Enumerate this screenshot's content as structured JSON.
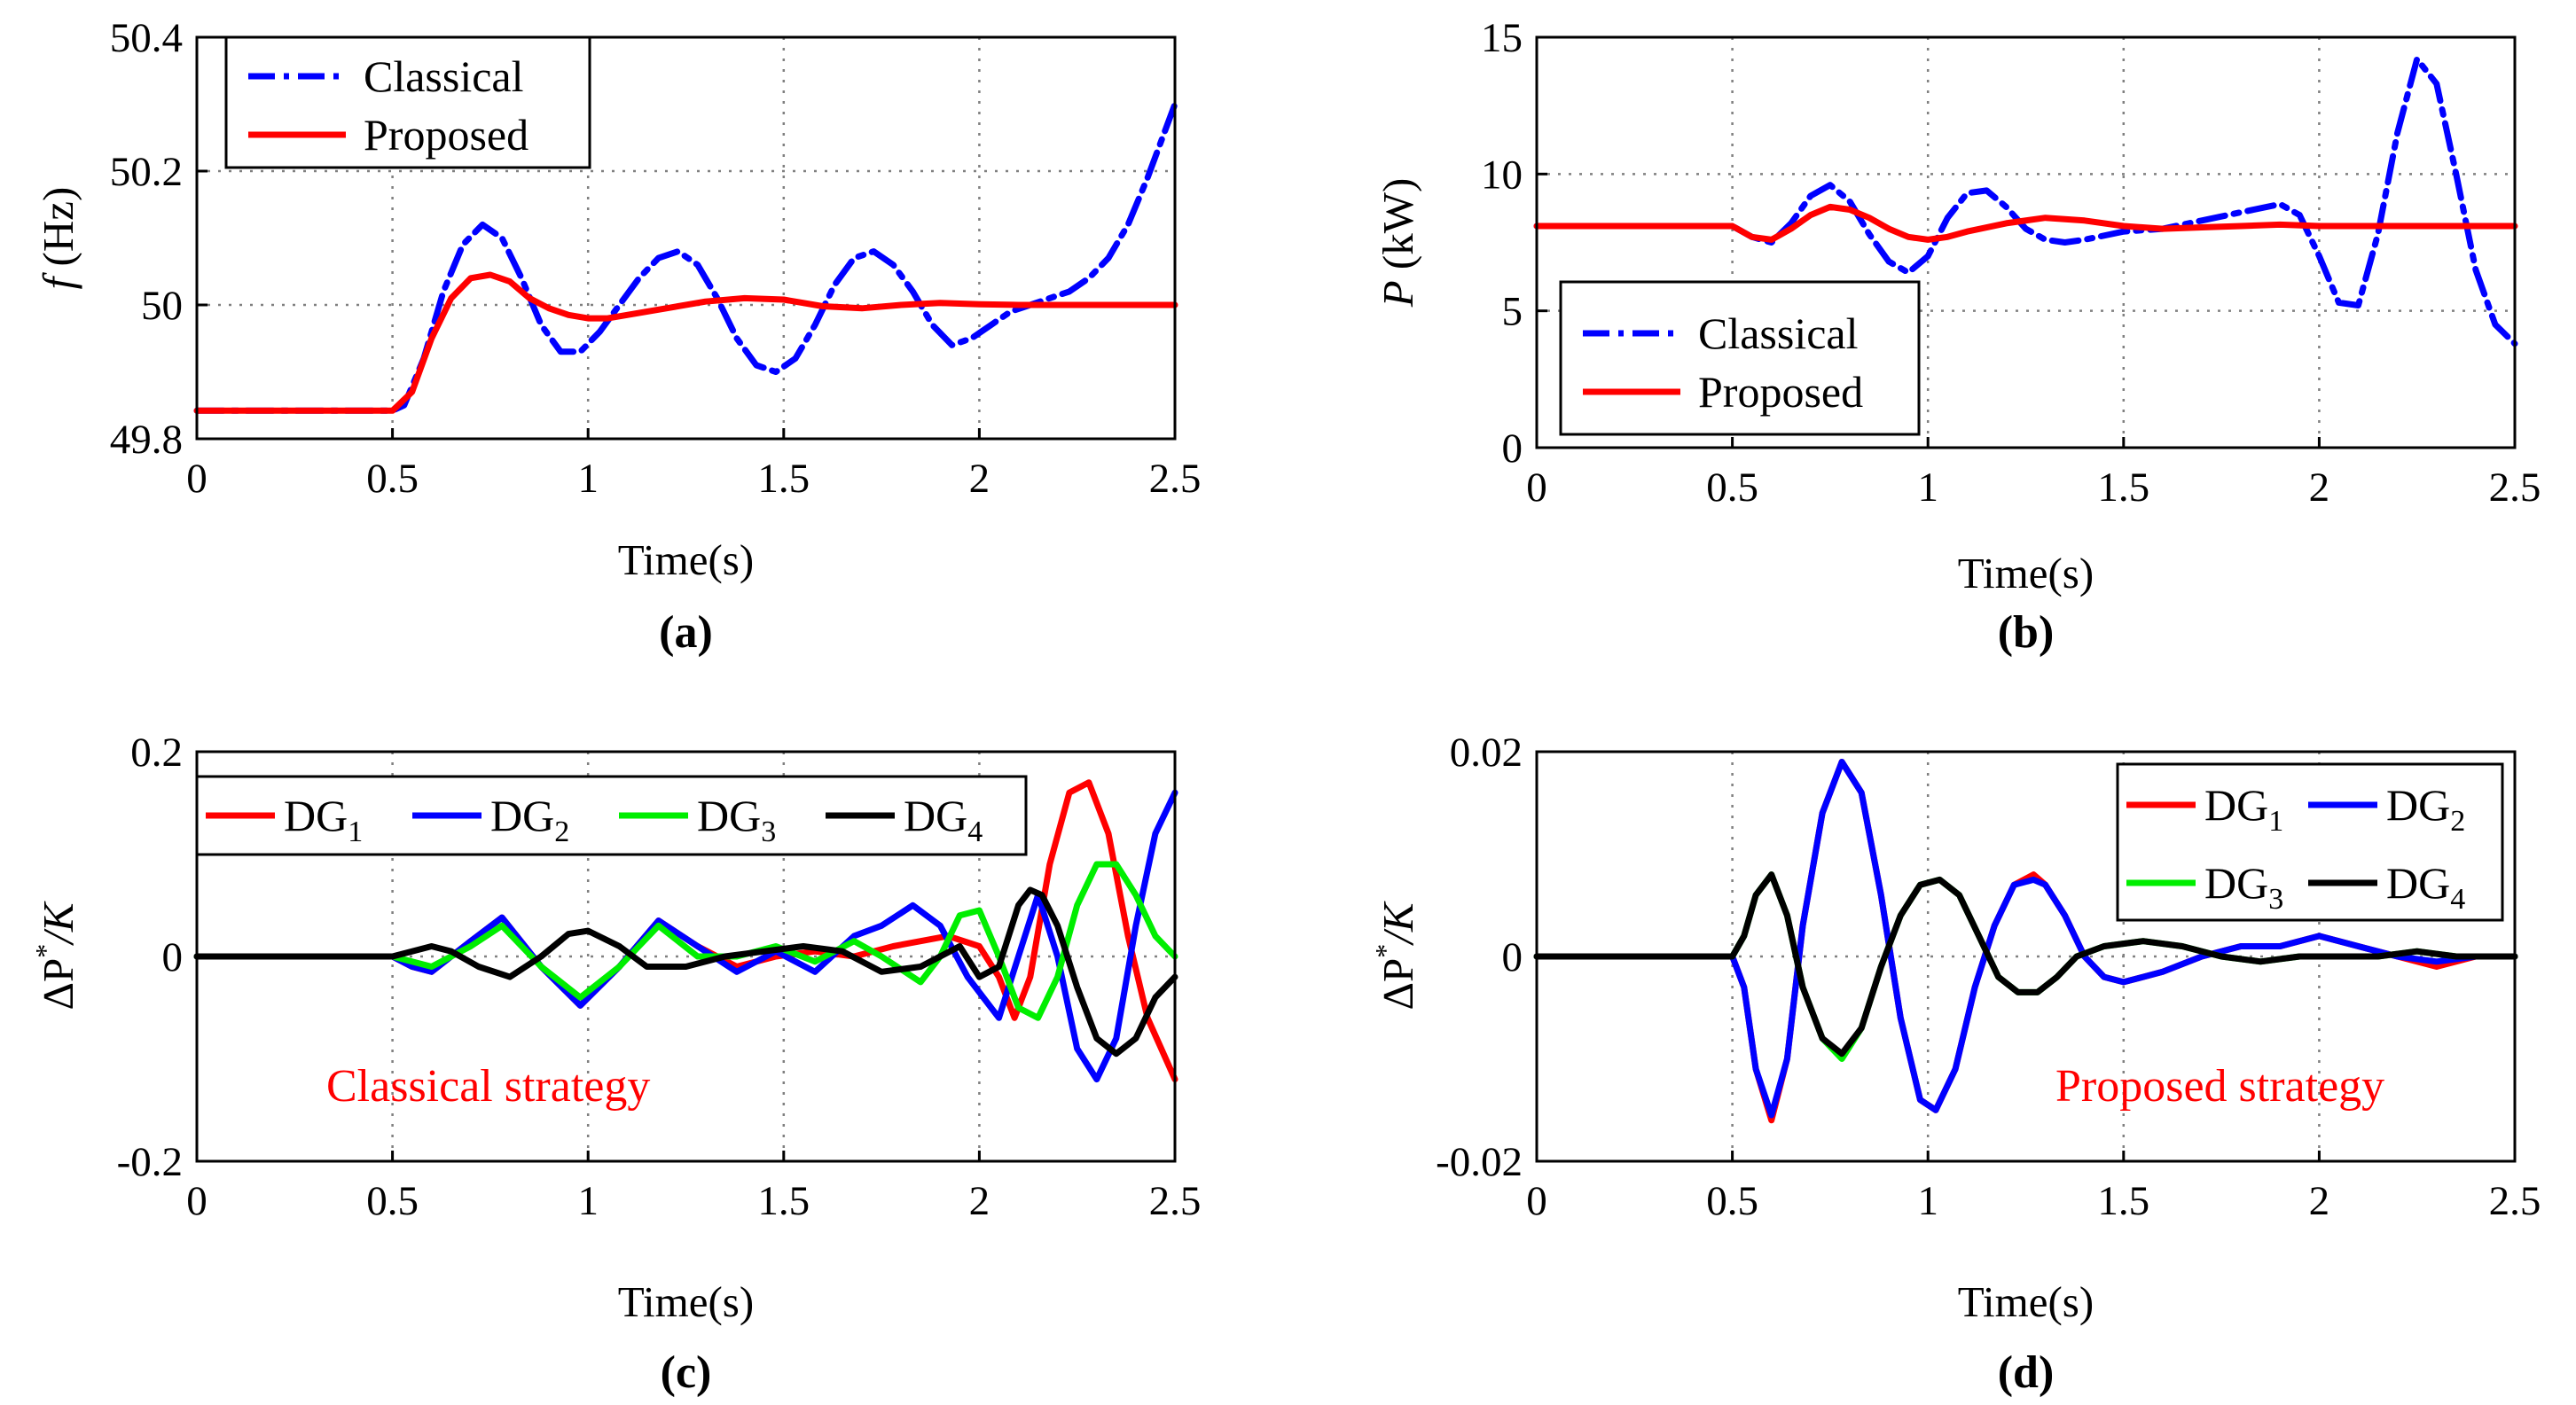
{
  "colors": {
    "red": "#ff0000",
    "blue": "#0000ff",
    "green": "#00ee00",
    "black": "#000000"
  },
  "chart_data": [
    {
      "id": "a",
      "type": "line",
      "caption": "(a)",
      "xlabel": "Time(s)",
      "ylabel_italic": "f",
      "ylabel_rest": " (Hz)",
      "xlim": [
        0,
        2.5
      ],
      "ylim": [
        49.8,
        50.4
      ],
      "xticks": [
        "0",
        "0.5",
        "1",
        "1.5",
        "2",
        "2.5"
      ],
      "xtick_values": [
        0,
        0.5,
        1,
        1.5,
        2,
        2.5
      ],
      "yticks": [
        "49.8",
        "50",
        "50.2",
        "50.4"
      ],
      "ytick_values": [
        49.8,
        50,
        50.2,
        50.4
      ],
      "legend": {
        "position": "top-left",
        "labels": [
          "Classical",
          "Proposed"
        ]
      },
      "series": [
        {
          "name": "Classical",
          "color": "blue",
          "dash": "dashdot",
          "x": [
            0,
            0.5,
            0.53,
            0.58,
            0.63,
            0.68,
            0.73,
            0.78,
            0.83,
            0.88,
            0.93,
            0.98,
            1.03,
            1.08,
            1.13,
            1.18,
            1.23,
            1.28,
            1.33,
            1.38,
            1.43,
            1.48,
            1.53,
            1.58,
            1.63,
            1.68,
            1.73,
            1.78,
            1.83,
            1.88,
            1.93,
            1.98,
            2.03,
            2.08,
            2.13,
            2.18,
            2.23,
            2.28,
            2.33,
            2.38,
            2.43,
            2.5
          ],
          "y": [
            49.842,
            49.842,
            49.85,
            49.92,
            50.02,
            50.09,
            50.12,
            50.1,
            50.04,
            49.97,
            49.93,
            49.93,
            49.96,
            50.0,
            50.04,
            50.07,
            50.08,
            50.06,
            50.01,
            49.95,
            49.91,
            49.9,
            49.92,
            49.97,
            50.03,
            50.07,
            50.08,
            50.06,
            50.02,
            49.97,
            49.94,
            49.95,
            49.97,
            49.99,
            50.0,
            50.01,
            50.02,
            50.04,
            50.07,
            50.12,
            50.19,
            50.3
          ]
        },
        {
          "name": "Proposed",
          "color": "red",
          "dash": "solid",
          "x": [
            0,
            0.5,
            0.55,
            0.6,
            0.65,
            0.7,
            0.75,
            0.8,
            0.85,
            0.9,
            0.95,
            1.0,
            1.05,
            1.1,
            1.2,
            1.3,
            1.4,
            1.5,
            1.6,
            1.7,
            1.8,
            1.9,
            2.0,
            2.1,
            2.2,
            2.3,
            2.4,
            2.5
          ],
          "y": [
            49.842,
            49.842,
            49.87,
            49.95,
            50.01,
            50.04,
            50.045,
            50.035,
            50.01,
            49.995,
            49.985,
            49.98,
            49.98,
            49.985,
            49.995,
            50.005,
            50.01,
            50.008,
            49.998,
            49.995,
            50.0,
            50.003,
            50.001,
            50.0,
            50.0,
            50.0,
            50.0,
            50.0
          ]
        }
      ]
    },
    {
      "id": "b",
      "type": "line",
      "caption": "(b)",
      "xlabel": "Time(s)",
      "ylabel_italic": "P",
      "ylabel_rest": " (kW)",
      "xlim": [
        0,
        2.5
      ],
      "ylim": [
        0,
        15
      ],
      "xticks": [
        "0",
        "0.5",
        "1",
        "1.5",
        "2",
        "2.5"
      ],
      "xtick_values": [
        0,
        0.5,
        1,
        1.5,
        2,
        2.5
      ],
      "yticks": [
        "0",
        "5",
        "10",
        "15"
      ],
      "ytick_values": [
        0,
        5,
        10,
        15
      ],
      "legend": {
        "position": "bottom-left",
        "labels": [
          "Classical",
          "Proposed"
        ]
      },
      "series": [
        {
          "name": "Classical",
          "color": "blue",
          "dash": "dashdot",
          "x": [
            0,
            0.5,
            0.55,
            0.6,
            0.65,
            0.7,
            0.75,
            0.8,
            0.85,
            0.9,
            0.95,
            1.0,
            1.05,
            1.1,
            1.15,
            1.2,
            1.25,
            1.3,
            1.35,
            1.4,
            1.5,
            1.6,
            1.7,
            1.8,
            1.9,
            1.95,
            2.0,
            2.05,
            2.1,
            2.15,
            2.2,
            2.25,
            2.3,
            2.35,
            2.4,
            2.45,
            2.5
          ],
          "y": [
            8.1,
            8.1,
            7.7,
            7.5,
            8.2,
            9.2,
            9.6,
            9.0,
            7.8,
            6.8,
            6.4,
            7.0,
            8.4,
            9.3,
            9.4,
            8.8,
            8.0,
            7.6,
            7.5,
            7.6,
            7.9,
            8.0,
            8.3,
            8.6,
            8.9,
            8.5,
            7.0,
            5.3,
            5.2,
            7.8,
            11.5,
            14.2,
            13.3,
            10.0,
            6.5,
            4.5,
            3.8
          ]
        },
        {
          "name": "Proposed",
          "color": "red",
          "dash": "solid",
          "x": [
            0,
            0.5,
            0.55,
            0.6,
            0.65,
            0.7,
            0.75,
            0.8,
            0.85,
            0.9,
            0.95,
            1.0,
            1.05,
            1.1,
            1.2,
            1.3,
            1.4,
            1.5,
            1.6,
            1.7,
            1.8,
            1.9,
            2.0,
            2.2,
            2.5
          ],
          "y": [
            8.1,
            8.1,
            7.7,
            7.6,
            8.0,
            8.5,
            8.8,
            8.7,
            8.4,
            8.0,
            7.7,
            7.6,
            7.7,
            7.9,
            8.2,
            8.4,
            8.3,
            8.1,
            8.0,
            8.05,
            8.1,
            8.15,
            8.1,
            8.1,
            8.1
          ]
        }
      ]
    },
    {
      "id": "c",
      "type": "line",
      "caption": "(c)",
      "xlabel": "Time(s)",
      "ylabel_text": "ΔP",
      "ylabel_sup": "*",
      "ylabel_tail": "/K",
      "xlim": [
        0,
        2.5
      ],
      "ylim": [
        -0.2,
        0.2
      ],
      "xticks": [
        "0",
        "0.5",
        "1",
        "1.5",
        "2",
        "2.5"
      ],
      "xtick_values": [
        0,
        0.5,
        1,
        1.5,
        2,
        2.5
      ],
      "yticks": [
        "-0.2",
        "0",
        "0.2"
      ],
      "ytick_values": [
        -0.2,
        0,
        0.2
      ],
      "annotation": "Classical strategy",
      "legend": {
        "position": "top",
        "base": "DG",
        "subs": [
          "1",
          "2",
          "3",
          "4"
        ]
      },
      "series": [
        {
          "name": "DG1",
          "color": "red",
          "x": [
            0,
            0.5,
            0.55,
            0.6,
            0.7,
            0.78,
            0.88,
            0.98,
            1.08,
            1.18,
            1.28,
            1.38,
            1.48,
            1.58,
            1.68,
            1.78,
            1.85,
            1.92,
            2.0,
            2.05,
            2.09,
            2.13,
            2.18,
            2.23,
            2.28,
            2.33,
            2.38,
            2.43,
            2.5
          ],
          "y": [
            0,
            0,
            -0.01,
            -0.015,
            0.015,
            0.038,
            -0.01,
            -0.048,
            -0.01,
            0.035,
            0.01,
            -0.01,
            0.0,
            0.005,
            0.0,
            0.01,
            0.015,
            0.02,
            0.01,
            -0.02,
            -0.06,
            -0.02,
            0.09,
            0.16,
            0.17,
            0.12,
            0.02,
            -0.06,
            -0.12
          ]
        },
        {
          "name": "DG2",
          "color": "blue",
          "x": [
            0,
            0.5,
            0.55,
            0.6,
            0.7,
            0.78,
            0.88,
            0.98,
            1.08,
            1.18,
            1.28,
            1.38,
            1.48,
            1.58,
            1.68,
            1.75,
            1.83,
            1.9,
            1.97,
            2.05,
            2.1,
            2.15,
            2.2,
            2.25,
            2.3,
            2.35,
            2.4,
            2.45,
            2.5
          ],
          "y": [
            0,
            0,
            -0.01,
            -0.015,
            0.015,
            0.038,
            -0.01,
            -0.048,
            -0.01,
            0.035,
            0.01,
            -0.015,
            0.005,
            -0.015,
            0.02,
            0.03,
            0.05,
            0.03,
            -0.02,
            -0.06,
            0.0,
            0.06,
            0.0,
            -0.09,
            -0.12,
            -0.08,
            0.03,
            0.12,
            0.16
          ]
        },
        {
          "name": "DG3",
          "color": "green",
          "x": [
            0,
            0.5,
            0.55,
            0.6,
            0.7,
            0.78,
            0.88,
            0.98,
            1.08,
            1.18,
            1.28,
            1.38,
            1.48,
            1.58,
            1.68,
            1.75,
            1.85,
            1.9,
            1.95,
            2.0,
            2.05,
            2.1,
            2.15,
            2.2,
            2.25,
            2.3,
            2.35,
            2.4,
            2.45,
            2.5
          ],
          "y": [
            0,
            0,
            -0.005,
            -0.01,
            0.01,
            0.03,
            -0.01,
            -0.04,
            -0.01,
            0.03,
            0.0,
            0.0,
            0.01,
            -0.005,
            0.015,
            0.0,
            -0.025,
            0.0,
            0.04,
            0.045,
            0.0,
            -0.05,
            -0.06,
            -0.02,
            0.05,
            0.09,
            0.09,
            0.06,
            0.02,
            0.0
          ]
        },
        {
          "name": "DG4",
          "color": "black",
          "x": [
            0,
            0.5,
            0.55,
            0.6,
            0.65,
            0.72,
            0.8,
            0.88,
            0.95,
            1.0,
            1.08,
            1.15,
            1.25,
            1.35,
            1.45,
            1.55,
            1.65,
            1.75,
            1.85,
            1.95,
            2.0,
            2.05,
            2.1,
            2.13,
            2.16,
            2.2,
            2.25,
            2.3,
            2.35,
            2.4,
            2.45,
            2.5
          ],
          "y": [
            0,
            0,
            0.005,
            0.01,
            0.005,
            -0.01,
            -0.02,
            0.0,
            0.022,
            0.025,
            0.01,
            -0.01,
            -0.01,
            0.0,
            0.005,
            0.01,
            0.005,
            -0.015,
            -0.01,
            0.01,
            -0.02,
            -0.01,
            0.05,
            0.065,
            0.06,
            0.03,
            -0.03,
            -0.08,
            -0.095,
            -0.08,
            -0.04,
            -0.02
          ]
        }
      ]
    },
    {
      "id": "d",
      "type": "line",
      "caption": "(d)",
      "xlabel": "Time(s)",
      "ylabel_text": "ΔP",
      "ylabel_sup": "*",
      "ylabel_tail": "/K",
      "xlim": [
        0,
        2.5
      ],
      "ylim": [
        -0.02,
        0.02
      ],
      "xticks": [
        "0",
        "0.5",
        "1",
        "1.5",
        "2",
        "2.5"
      ],
      "xtick_values": [
        0,
        0.5,
        1,
        1.5,
        2,
        2.5
      ],
      "yticks": [
        "-0.02",
        "0",
        "0.02"
      ],
      "ytick_values": [
        -0.02,
        0,
        0.02
      ],
      "annotation": "Proposed strategy",
      "legend": {
        "position": "top-right",
        "base": "DG",
        "subs": [
          "1",
          "2",
          "3",
          "4"
        ]
      },
      "series": [
        {
          "name": "DG1",
          "color": "red",
          "x": [
            0,
            0.5,
            0.53,
            0.56,
            0.6,
            0.64,
            0.68,
            0.73,
            0.78,
            0.83,
            0.88,
            0.93,
            0.98,
            1.02,
            1.07,
            1.12,
            1.17,
            1.22,
            1.27,
            1.3,
            1.35,
            1.4,
            1.45,
            1.5,
            1.55,
            1.6,
            1.7,
            1.8,
            1.9,
            2.0,
            2.1,
            2.2,
            2.3,
            2.4,
            2.5
          ],
          "y": [
            0,
            0,
            -0.003,
            -0.011,
            -0.016,
            -0.01,
            0.003,
            0.014,
            0.019,
            0.016,
            0.006,
            -0.006,
            -0.014,
            -0.015,
            -0.011,
            -0.003,
            0.003,
            0.007,
            0.008,
            0.007,
            0.004,
            0.0,
            -0.002,
            -0.0025,
            -0.002,
            -0.0015,
            0.0,
            0.001,
            0.001,
            0.002,
            0.001,
            0.0,
            -0.001,
            0.0,
            0.0
          ]
        },
        {
          "name": "DG2",
          "color": "blue",
          "x": [
            0,
            0.5,
            0.53,
            0.56,
            0.6,
            0.64,
            0.68,
            0.73,
            0.78,
            0.83,
            0.88,
            0.93,
            0.98,
            1.02,
            1.07,
            1.12,
            1.17,
            1.22,
            1.27,
            1.3,
            1.35,
            1.4,
            1.45,
            1.5,
            1.55,
            1.6,
            1.7,
            1.8,
            1.9,
            2.0,
            2.1,
            2.2,
            2.3,
            2.4,
            2.5
          ],
          "y": [
            0,
            0,
            -0.003,
            -0.011,
            -0.0155,
            -0.01,
            0.003,
            0.014,
            0.019,
            0.016,
            0.006,
            -0.006,
            -0.014,
            -0.015,
            -0.011,
            -0.003,
            0.003,
            0.007,
            0.0075,
            0.007,
            0.004,
            0.0,
            -0.002,
            -0.0025,
            -0.002,
            -0.0015,
            0.0,
            0.001,
            0.001,
            0.002,
            0.001,
            0.0,
            -0.0005,
            0.0,
            0.0
          ]
        },
        {
          "name": "DG3",
          "color": "green",
          "x": [
            0,
            0.5,
            0.53,
            0.56,
            0.6,
            0.64,
            0.68,
            0.73,
            0.78,
            0.83,
            0.88,
            0.93,
            0.98,
            1.03,
            1.08,
            1.13,
            1.18,
            1.23,
            1.28,
            1.33,
            1.38,
            1.45,
            1.55,
            1.65,
            1.75,
            1.85,
            1.95,
            2.05,
            2.15,
            2.25,
            2.35,
            2.5
          ],
          "y": [
            0,
            0,
            0.002,
            0.006,
            0.008,
            0.004,
            -0.003,
            -0.008,
            -0.01,
            -0.007,
            -0.001,
            0.004,
            0.007,
            0.0075,
            0.006,
            0.002,
            -0.002,
            -0.0035,
            -0.0035,
            -0.002,
            0.0,
            0.001,
            0.0015,
            0.001,
            0.0,
            -0.0005,
            0.0,
            0.0,
            0.0,
            0.0005,
            0.0,
            0.0
          ]
        },
        {
          "name": "DG4",
          "color": "black",
          "x": [
            0,
            0.5,
            0.53,
            0.56,
            0.6,
            0.64,
            0.68,
            0.73,
            0.78,
            0.83,
            0.88,
            0.93,
            0.98,
            1.03,
            1.08,
            1.13,
            1.18,
            1.23,
            1.28,
            1.33,
            1.38,
            1.45,
            1.55,
            1.65,
            1.75,
            1.85,
            1.95,
            2.05,
            2.15,
            2.25,
            2.35,
            2.5
          ],
          "y": [
            0,
            0,
            0.002,
            0.006,
            0.008,
            0.004,
            -0.003,
            -0.008,
            -0.0095,
            -0.007,
            -0.001,
            0.004,
            0.007,
            0.0075,
            0.006,
            0.002,
            -0.002,
            -0.0035,
            -0.0035,
            -0.002,
            0.0,
            0.001,
            0.0015,
            0.001,
            0.0,
            -0.0005,
            0.0,
            0.0,
            0.0,
            0.0005,
            0.0,
            0.0
          ]
        }
      ]
    }
  ]
}
